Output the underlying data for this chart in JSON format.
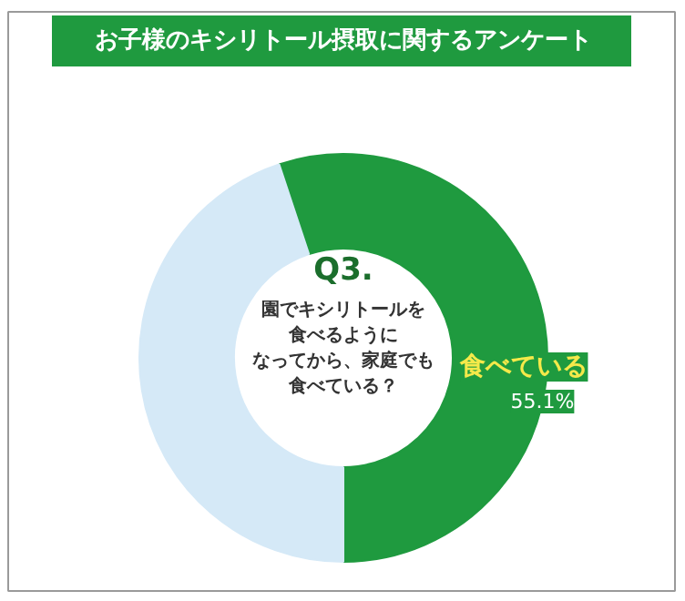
{
  "chart_data": {
    "type": "donut",
    "title": "お子様のキシリトール摂取に関するアンケート",
    "categories": [
      "食べている",
      null
    ],
    "values": [
      55.1,
      44.9
    ],
    "colors": [
      "#1f9a3f",
      "#d5e9f7"
    ],
    "value_labels": [
      "55.1%",
      null
    ],
    "annotations": [
      "Q3.",
      "園でキシリトールを",
      "食べるように",
      "なってから、家庭でも",
      "食べている？"
    ]
  }
}
